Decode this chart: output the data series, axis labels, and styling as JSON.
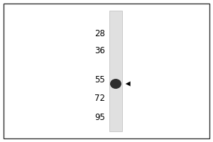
{
  "fig_width": 3.0,
  "fig_height": 2.0,
  "dpi": 100,
  "background_color": "#ffffff",
  "inner_bg_color": "#ffffff",
  "border_color": "#888888",
  "mw_markers": [
    95,
    72,
    55,
    36,
    28
  ],
  "band_mw": 58,
  "lane_color": "#e0e0e0",
  "lane_border_color": "#bbbbbb",
  "band_color": "#1a1a1a",
  "arrow_color": "#000000",
  "marker_fontsize": 8.5,
  "y_min": 20,
  "y_max": 110
}
